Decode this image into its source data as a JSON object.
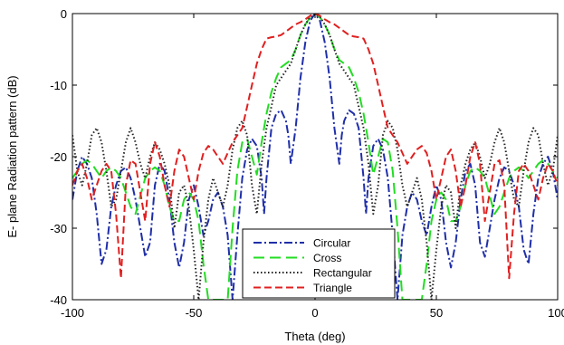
{
  "chart_data": {
    "type": "line",
    "xlabel": "Theta (deg)",
    "ylabel": "E- plane Radiation pattern (dB)",
    "xlim": [
      -100,
      100
    ],
    "ylim": [
      -40,
      0
    ],
    "xticks": [
      -100,
      -50,
      0,
      50,
      100
    ],
    "yticks": [
      0,
      -10,
      -20,
      -30,
      -40
    ],
    "grid": false,
    "legend_position": "bottom-center",
    "series": [
      {
        "name": "Circular",
        "color": "#1f2fa8",
        "dash": "dashdot",
        "x": [
          0,
          2,
          4,
          6,
          8,
          10,
          11,
          12,
          14,
          16,
          18,
          20,
          21,
          22,
          24,
          26,
          28,
          30,
          32,
          34,
          36,
          38,
          40,
          42,
          44,
          46,
          48,
          50,
          52,
          54,
          56,
          58,
          60,
          62,
          64,
          66,
          68,
          70,
          72,
          74,
          76,
          78,
          80,
          82,
          84,
          86,
          88,
          90,
          92,
          94,
          96,
          98,
          100
        ],
        "y": [
          0,
          -1,
          -4,
          -9,
          -16,
          -21,
          -17,
          -15,
          -13.5,
          -14,
          -16,
          -23,
          -28,
          -23,
          -18.5,
          -17.5,
          -19,
          -23,
          -31,
          -40,
          -31,
          -27,
          -25,
          -26,
          -29,
          -31,
          -27,
          -24,
          -26,
          -32,
          -35.5,
          -32,
          -26,
          -22,
          -21,
          -24,
          -32,
          -34,
          -30,
          -26,
          -23,
          -21.5,
          -22,
          -24,
          -27,
          -33,
          -35,
          -28,
          -23,
          -21,
          -20,
          -22,
          -26
        ]
      },
      {
        "name": "Cross",
        "color": "#22dd22",
        "dash": "longdash",
        "x": [
          0,
          2,
          4,
          6,
          8,
          10,
          12,
          14,
          16,
          18,
          20,
          22,
          24,
          26,
          28,
          30,
          32,
          34,
          36,
          38,
          40,
          42,
          44,
          46,
          48,
          50,
          52,
          54,
          56,
          58,
          60,
          62,
          64,
          66,
          68,
          70,
          72,
          74,
          76,
          78,
          80,
          82,
          84,
          86,
          88,
          90,
          92,
          94,
          96,
          98,
          100
        ],
        "y": [
          0,
          -0.5,
          -1.5,
          -3,
          -5,
          -6.5,
          -7,
          -7.5,
          -9,
          -11,
          -14,
          -18,
          -22.5,
          -20,
          -17.5,
          -18,
          -22,
          -30,
          -40,
          -40,
          -40,
          -40,
          -40,
          -35,
          -29,
          -26,
          -25,
          -26,
          -29,
          -29,
          -27,
          -24,
          -22,
          -21.5,
          -22,
          -23,
          -25.5,
          -28,
          -27,
          -25,
          -23,
          -22,
          -21.5,
          -22,
          -23,
          -22,
          -21,
          -20.5,
          -21,
          -22,
          -23
        ]
      },
      {
        "name": "Rectangular",
        "color": "#222222",
        "dash": "dotted",
        "x": [
          0,
          2,
          4,
          6,
          8,
          10,
          12,
          14,
          16,
          18,
          20,
          22,
          24,
          26,
          28,
          30,
          32,
          34,
          36,
          38,
          40,
          42,
          44,
          46,
          48,
          50,
          52,
          54,
          56,
          58,
          60,
          62,
          64,
          66,
          68,
          70,
          72,
          74,
          76,
          78,
          80,
          82,
          84,
          86,
          88,
          90,
          92,
          94,
          96,
          98,
          100
        ],
        "y": [
          0,
          -0.5,
          -1.5,
          -3,
          -5,
          -7,
          -8,
          -9,
          -10,
          -13,
          -16,
          -21,
          -28,
          -24,
          -17,
          -15,
          -16,
          -19,
          -24,
          -27,
          -25,
          -23,
          -26,
          -32,
          -40,
          -33,
          -27,
          -24,
          -25,
          -30,
          -24,
          -21,
          -19,
          -18,
          -20,
          -23,
          -21,
          -18,
          -16,
          -18,
          -22,
          -26,
          -27,
          -22,
          -18,
          -16,
          -17,
          -21,
          -24,
          -22,
          -17
        ]
      },
      {
        "name": "Triangle",
        "color": "#e02020",
        "dash": "dashed",
        "x": [
          0,
          2,
          4,
          6,
          8,
          10,
          12,
          14,
          16,
          18,
          20,
          22,
          24,
          26,
          28,
          30,
          32,
          34,
          36,
          38,
          40,
          42,
          44,
          46,
          48,
          50,
          52,
          54,
          56,
          58,
          60,
          62,
          64,
          66,
          68,
          70,
          72,
          74,
          76,
          78,
          80,
          82,
          84,
          86,
          88,
          90,
          92,
          94,
          96,
          98,
          100
        ],
        "y": [
          0,
          -0.3,
          -0.8,
          -1.2,
          -1.5,
          -2,
          -2.5,
          -3,
          -3.2,
          -3.3,
          -3.5,
          -5,
          -7,
          -10,
          -13,
          -16,
          -17,
          -18,
          -19.5,
          -21,
          -20,
          -19,
          -18.5,
          -19.5,
          -22,
          -26,
          -23,
          -20,
          -19,
          -22,
          -27,
          -24,
          -20,
          -18,
          -21,
          -29,
          -25,
          -21,
          -20.5,
          -24,
          -37,
          -28,
          -22,
          -21,
          -22,
          -24,
          -26,
          -23,
          -21,
          -22,
          -24
        ]
      }
    ]
  }
}
